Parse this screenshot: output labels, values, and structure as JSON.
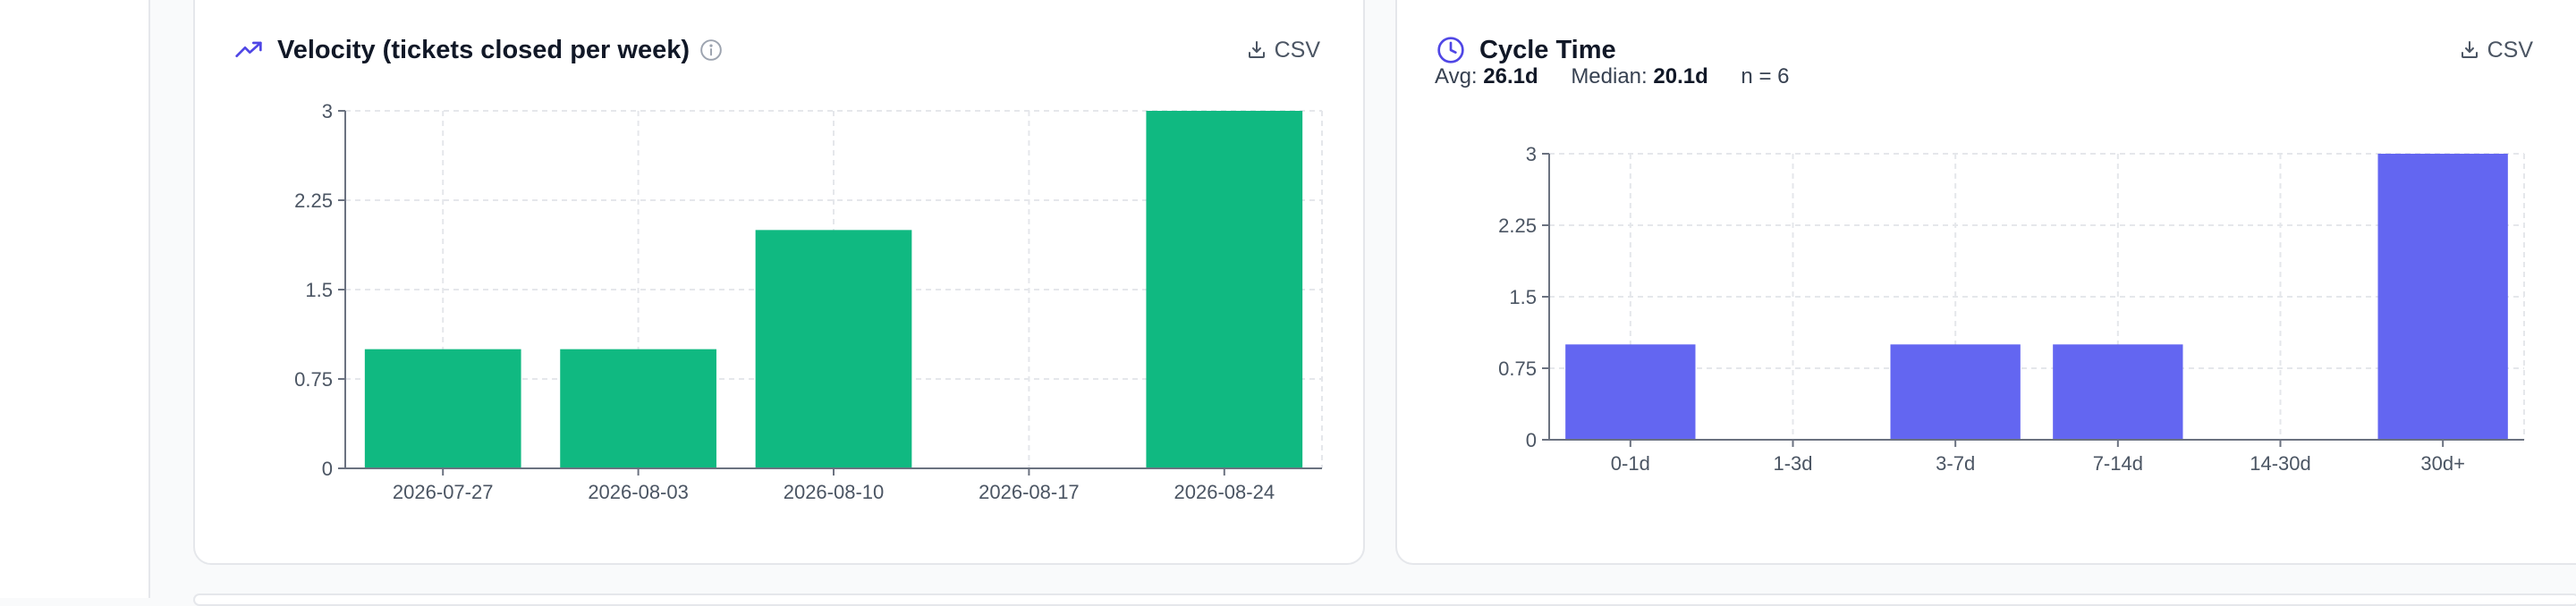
{
  "cards": {
    "velocity": {
      "title": "Velocity (tickets closed per week)",
      "csv_label": "CSV",
      "icon": "trending-up-icon",
      "info_icon": "info-icon"
    },
    "cycle": {
      "title": "Cycle Time",
      "csv_label": "CSV",
      "icon": "clock-icon",
      "stats": {
        "avg_label": "Avg:",
        "avg_value": "26.1d",
        "median_label": "Median:",
        "median_value": "20.1d",
        "n_text": "n = 6"
      }
    }
  },
  "colors": {
    "velocity_bar": "#10b981",
    "cycle_bar": "#6366f1",
    "accent_icon": "#4f46e5",
    "grid": "#e5e7eb",
    "axis": "#6b7280",
    "tick_text": "#4b5563"
  },
  "chart_data": [
    {
      "type": "bar",
      "title": "Velocity (tickets closed per week)",
      "categories": [
        "2026-07-27",
        "2026-08-03",
        "2026-08-10",
        "2026-08-17",
        "2026-08-24"
      ],
      "values": [
        1,
        1,
        2,
        0,
        3
      ],
      "ylim": [
        0,
        3
      ],
      "yticks": [
        "0",
        "0.75",
        "1.5",
        "2.25",
        "3"
      ],
      "grid": true
    },
    {
      "type": "bar",
      "title": "Cycle Time",
      "categories": [
        "0-1d",
        "1-3d",
        "3-7d",
        "7-14d",
        "14-30d",
        "30d+"
      ],
      "values": [
        1,
        0,
        1,
        1,
        0,
        3
      ],
      "ylim": [
        0,
        3
      ],
      "yticks": [
        "0",
        "0.75",
        "1.5",
        "2.25",
        "3"
      ],
      "grid": true
    }
  ]
}
